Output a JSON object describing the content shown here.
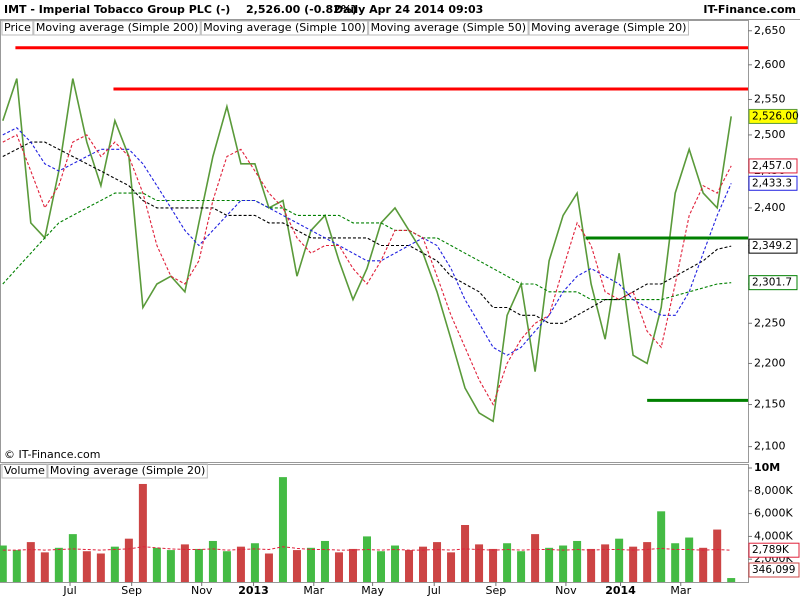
{
  "chart_data": {
    "type": "stock",
    "title": "IMT - Imperial Tobacco Group PLC (-)",
    "quote": "2,526.00 (-0.82%)",
    "period": "Daily  Apr 24 2014 09:03",
    "site": "IT-Finance.com",
    "copyright": "© IT-Finance.com",
    "log_scale": true,
    "xlim": [
      -0.2,
      53.2
    ],
    "xticks": [
      {
        "value": 4.8,
        "label": "Jul"
      },
      {
        "value": 9.2,
        "label": "Sep"
      },
      {
        "value": 14.2,
        "label": "Nov"
      },
      {
        "value": 17.9,
        "label": "2013"
      },
      {
        "value": 22.2,
        "label": "Mar"
      },
      {
        "value": 26.4,
        "label": "May"
      },
      {
        "value": 30.8,
        "label": "Jul"
      },
      {
        "value": 35.2,
        "label": "Sep"
      },
      {
        "value": 40.2,
        "label": "Nov"
      },
      {
        "value": 44.1,
        "label": "2014"
      },
      {
        "value": 48.4,
        "label": "Mar"
      }
    ],
    "ylim": [
      2082,
      2666
    ],
    "yticks": [
      {
        "value": 2650,
        "label": "2,650"
      },
      {
        "value": 2600,
        "label": "2,600"
      },
      {
        "value": 2550,
        "label": "2,550"
      },
      {
        "value": 2500,
        "label": "2,500"
      },
      {
        "value": 2450,
        "label": "2,450"
      },
      {
        "value": 2400,
        "label": "2,400"
      },
      {
        "value": 2350,
        "label": "2,350"
      },
      {
        "value": 2300,
        "label": "2,300"
      },
      {
        "value": 2250,
        "label": "2,250"
      },
      {
        "value": 2200,
        "label": "2,200"
      },
      {
        "value": 2150,
        "label": "2,150"
      },
      {
        "value": 2100,
        "label": "2,100"
      }
    ],
    "series": [
      {
        "name": "Price",
        "color": "#5a9a3a",
        "tag_bg": "#ffff00",
        "last_label": "2,526.00",
        "values": [
          2520,
          2580,
          2380,
          2360,
          2450,
          2580,
          2490,
          2430,
          2520,
          2470,
          2270,
          2300,
          2310,
          2290,
          2380,
          2470,
          2540,
          2460,
          2460,
          2400,
          2410,
          2310,
          2370,
          2390,
          2330,
          2280,
          2320,
          2380,
          2400,
          2370,
          2340,
          2290,
          2230,
          2170,
          2140,
          2130,
          2260,
          2300,
          2190,
          2330,
          2390,
          2420,
          2300,
          2230,
          2340,
          2210,
          2200,
          2270,
          2420,
          2480,
          2420,
          2400,
          2526
        ]
      },
      {
        "name": "Moving average (Simple 200)",
        "color": "#008000",
        "last_label": "2,301.7",
        "values": [
          2300,
          2320,
          2340,
          2360,
          2380,
          2390,
          2400,
          2410,
          2420,
          2420,
          2420,
          2410,
          2410,
          2410,
          2410,
          2410,
          2410,
          2410,
          2410,
          2400,
          2400,
          2390,
          2390,
          2390,
          2390,
          2380,
          2380,
          2380,
          2370,
          2370,
          2360,
          2360,
          2350,
          2340,
          2330,
          2320,
          2310,
          2300,
          2300,
          2290,
          2290,
          2290,
          2280,
          2280,
          2280,
          2280,
          2280,
          2280,
          2285,
          2290,
          2295,
          2300,
          2301.7
        ]
      },
      {
        "name": "Moving average (Simple 100)",
        "color": "#000000",
        "last_label": "2,349.2",
        "values": [
          2470,
          2480,
          2490,
          2490,
          2480,
          2470,
          2460,
          2450,
          2440,
          2430,
          2410,
          2400,
          2400,
          2400,
          2400,
          2400,
          2390,
          2390,
          2390,
          2380,
          2380,
          2370,
          2360,
          2360,
          2360,
          2360,
          2360,
          2350,
          2350,
          2350,
          2340,
          2330,
          2310,
          2300,
          2290,
          2270,
          2270,
          2260,
          2260,
          2250,
          2250,
          2260,
          2270,
          2280,
          2280,
          2290,
          2300,
          2300,
          2310,
          2320,
          2330,
          2345,
          2349.2
        ]
      },
      {
        "name": "Moving average (Simple 50)",
        "color": "#2020e0",
        "last_label": "2,433.3",
        "values": [
          2500,
          2510,
          2490,
          2460,
          2450,
          2460,
          2470,
          2480,
          2480,
          2480,
          2460,
          2430,
          2400,
          2370,
          2350,
          2370,
          2390,
          2410,
          2410,
          2400,
          2390,
          2380,
          2370,
          2360,
          2350,
          2340,
          2330,
          2330,
          2340,
          2350,
          2360,
          2350,
          2320,
          2280,
          2250,
          2220,
          2210,
          2220,
          2240,
          2260,
          2290,
          2310,
          2320,
          2310,
          2300,
          2280,
          2270,
          2260,
          2260,
          2290,
          2340,
          2390,
          2433.3
        ]
      },
      {
        "name": "Moving average (Simple 20)",
        "color": "#e0203a",
        "last_label": "2,457.0",
        "values": [
          2490,
          2500,
          2450,
          2400,
          2430,
          2490,
          2500,
          2470,
          2490,
          2470,
          2420,
          2350,
          2310,
          2300,
          2330,
          2410,
          2470,
          2480,
          2450,
          2420,
          2400,
          2360,
          2340,
          2350,
          2350,
          2320,
          2300,
          2330,
          2370,
          2370,
          2360,
          2310,
          2260,
          2220,
          2180,
          2150,
          2200,
          2230,
          2250,
          2260,
          2320,
          2380,
          2350,
          2290,
          2280,
          2290,
          2240,
          2220,
          2300,
          2390,
          2430,
          2420,
          2457
        ]
      }
    ],
    "levels": [
      {
        "value": 2625,
        "from": 0.9,
        "color": "#ff0000"
      },
      {
        "value": 2565,
        "from": 7.9,
        "color": "#ff0000"
      },
      {
        "value": 2360,
        "from": 41.6,
        "color": "#008000"
      },
      {
        "value": 2155,
        "from": 46.0,
        "color": "#008000"
      }
    ],
    "volume": {
      "ylim": [
        0,
        10000
      ],
      "yticks": [
        {
          "value": 10000,
          "label": "10M"
        },
        {
          "value": 8000,
          "label": "8,000K"
        },
        {
          "value": 6000,
          "label": "6,000K"
        },
        {
          "value": 4000,
          "label": "4,000K"
        },
        {
          "value": 2000,
          "label": "2,000K"
        }
      ],
      "up_color": "#44bb44",
      "down_color": "#cc4444",
      "series": [
        {
          "name": "Volume",
          "color": "#cc4444",
          "last_label": "346,099",
          "values": [
            3200,
            2800,
            3500,
            2600,
            3000,
            4200,
            2700,
            2500,
            3100,
            3800,
            8600,
            3000,
            2800,
            3300,
            2900,
            3600,
            2700,
            3100,
            3400,
            2500,
            9200,
            2800,
            3000,
            3600,
            2600,
            2900,
            4000,
            2700,
            3200,
            2800,
            3100,
            3500,
            2600,
            5000,
            3300,
            2900,
            3400,
            2700,
            4200,
            3000,
            3200,
            3600,
            2900,
            3300,
            3800,
            3100,
            3500,
            6200,
            3400,
            3900,
            3000,
            4600,
            346.099
          ]
        },
        {
          "name": "Moving average (Simple 20)",
          "color": "#e0203a",
          "last_label": "2,789K",
          "values": [
            2800,
            2800,
            2850,
            2800,
            2850,
            2900,
            2850,
            2800,
            2850,
            2900,
            3100,
            3000,
            2900,
            2850,
            2850,
            2900,
            2800,
            2850,
            2900,
            2850,
            3100,
            2950,
            2850,
            2850,
            2800,
            2800,
            2850,
            2800,
            2850,
            2800,
            2800,
            2850,
            2800,
            2900,
            2850,
            2800,
            2850,
            2800,
            2850,
            2850,
            2800,
            2850,
            2800,
            2850,
            2850,
            2800,
            2850,
            2950,
            2850,
            2850,
            2800,
            2850,
            2789
          ]
        }
      ]
    }
  }
}
